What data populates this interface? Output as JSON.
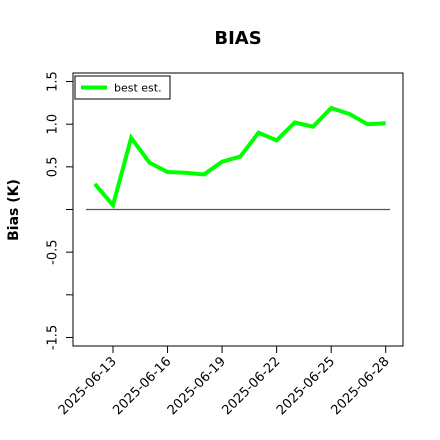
{
  "chart_data": {
    "type": "line",
    "title": "BIAS",
    "xlabel": "",
    "ylabel": "Bias (K)",
    "x": [
      "2025-06-12",
      "2025-06-13",
      "2025-06-14",
      "2025-06-15",
      "2025-06-16",
      "2025-06-17",
      "2025-06-18",
      "2025-06-19",
      "2025-06-20",
      "2025-06-21",
      "2025-06-22",
      "2025-06-23",
      "2025-06-24",
      "2025-06-25",
      "2025-06-26",
      "2025-06-27",
      "2025-06-28"
    ],
    "series": [
      {
        "name": "best est.",
        "color": "#00ff00",
        "values": [
          0.3,
          0.05,
          0.84,
          0.55,
          0.44,
          0.43,
          0.41,
          0.56,
          0.62,
          0.9,
          0.81,
          1.02,
          0.97,
          1.19,
          1.12,
          1.0,
          1.01
        ]
      }
    ],
    "reference_line": {
      "y": 0.0,
      "color": "#555555"
    },
    "ylim": [
      -1.6,
      1.6
    ],
    "yticks": [
      -1.5,
      -1.0,
      -0.5,
      0.0,
      0.5,
      1.0,
      1.5
    ],
    "ytick_labels": [
      "-1.5",
      "",
      "-0.5",
      "",
      "0.5",
      "1.0",
      "1.5"
    ],
    "xticks": [
      "2025-06-13",
      "2025-06-16",
      "2025-06-19",
      "2025-06-22",
      "2025-06-25",
      "2025-06-28"
    ],
    "grid": false,
    "legend_position": "top-left"
  }
}
